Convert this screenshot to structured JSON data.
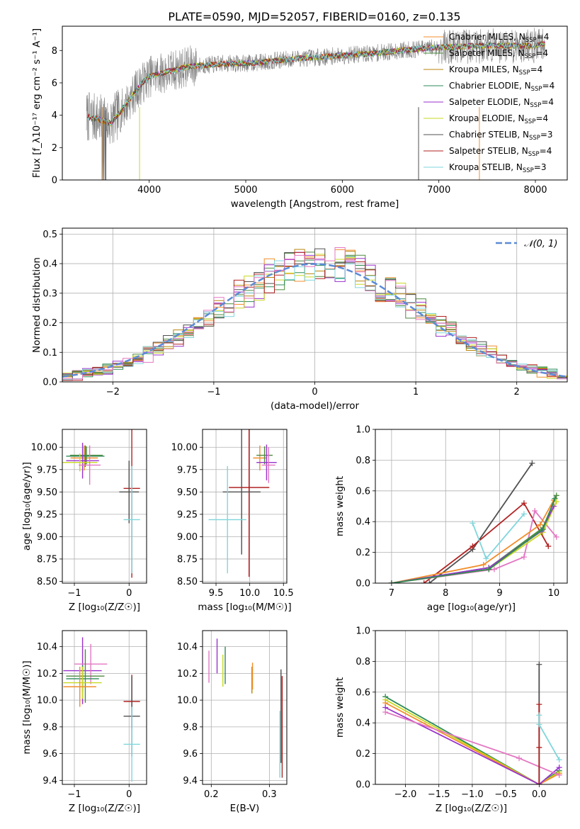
{
  "figure": {
    "title": "PLATE=0590, MJD=52057, FIBERID=0160, z=0.135"
  },
  "colors": {
    "Chabrier MILES": "#f28e2b",
    "Salpeter MILES": "#4e8a3e",
    "Kroupa MILES": "#b8860b",
    "Chabrier ELODIE": "#2e8b57",
    "Salpeter ELODIE": "#9932cc",
    "Kroupa ELODIE": "#c8d820",
    "Chabrier STELIB": "#505050",
    "Salpeter STELIB": "#b22222",
    "Kroupa STELIB": "#7fd6dc",
    "pink": "#e377c2",
    "observed": "#808080",
    "gaussian": "#5b8bd6"
  },
  "chart_data": [
    {
      "id": "spectrum",
      "type": "line",
      "xlabel": "wavelength [Angstrom, rest frame]",
      "ylabel": "Flux [f_λ10⁻¹⁷ erg cm⁻² s⁻¹ A⁻¹]",
      "xlim": [
        3100,
        8330
      ],
      "ylim": [
        0,
        9.5
      ],
      "xticks": [
        4000,
        5000,
        6000,
        7000,
        8000
      ],
      "yticks": [
        0,
        2,
        4,
        6,
        8
      ],
      "grid": false,
      "legend_position": "right",
      "legend": [
        {
          "label": "Chabrier MILES, N",
          "sub": "SSP",
          "tail": "=4",
          "color": "#f28e2b"
        },
        {
          "label": "Salpeter MILES, N",
          "sub": "SSP",
          "tail": "=4",
          "color": "#4e8a3e"
        },
        {
          "label": "Kroupa MILES, N",
          "sub": "SSP",
          "tail": "=4",
          "color": "#b8860b"
        },
        {
          "label": "Chabrier ELODIE, N",
          "sub": "SSP",
          "tail": "=4",
          "color": "#2e8b57"
        },
        {
          "label": "Salpeter ELODIE, N",
          "sub": "SSP",
          "tail": "=4",
          "color": "#9932cc"
        },
        {
          "label": "Kroupa ELODIE, N",
          "sub": "SSP",
          "tail": "=4",
          "color": "#c8d820"
        },
        {
          "label": "Chabrier STELIB, N",
          "sub": "SSP",
          "tail": "=3",
          "color": "#505050"
        },
        {
          "label": "Salpeter STELIB, N",
          "sub": "SSP",
          "tail": "=4",
          "color": "#b22222"
        },
        {
          "label": "Kroupa STELIB, N",
          "sub": "SSP",
          "tail": "=3",
          "color": "#7fd6dc"
        }
      ],
      "continuum": [
        [
          3350,
          3.9
        ],
        [
          3450,
          3.8
        ],
        [
          3600,
          3.5
        ],
        [
          3700,
          4.2
        ],
        [
          3800,
          5.0
        ],
        [
          3900,
          5.8
        ],
        [
          4000,
          6.4
        ],
        [
          4200,
          6.7
        ],
        [
          4400,
          7.0
        ],
        [
          4600,
          7.1
        ],
        [
          4800,
          7.2
        ],
        [
          5000,
          7.2
        ],
        [
          5200,
          7.3
        ],
        [
          5500,
          7.5
        ],
        [
          5800,
          7.6
        ],
        [
          6000,
          7.7
        ],
        [
          6300,
          7.8
        ],
        [
          6600,
          8.0
        ],
        [
          7000,
          8.2
        ],
        [
          7500,
          8.3
        ],
        [
          8000,
          8.3
        ],
        [
          8100,
          8.4
        ]
      ]
    },
    {
      "id": "residuals",
      "type": "histogram",
      "xlabel": "(data-model)/error",
      "ylabel": "Normed distribution",
      "xlim": [
        -2.5,
        2.5
      ],
      "ylim": [
        0,
        0.52
      ],
      "xticks": [
        -2,
        -1,
        0,
        1,
        2
      ],
      "yticks": [
        0.0,
        0.1,
        0.2,
        0.3,
        0.4,
        0.5
      ],
      "grid": true,
      "legend_position": "top-right",
      "legend": [
        {
          "label": "𝒩(0, 1)",
          "color": "#5b8bd6"
        }
      ]
    },
    {
      "id": "age-vs-Z",
      "type": "scatter",
      "xlabel": "Z [log₁₀(Z/Z☉)]",
      "ylabel": "age  [log₁₀(age/yr)]",
      "xlim": [
        -1.22,
        0.32
      ],
      "ylim": [
        8.48,
        10.2
      ],
      "xticks": [
        -1,
        0
      ],
      "yticks": [
        8.5,
        8.75,
        9.0,
        9.25,
        9.5,
        9.75,
        10.0
      ],
      "grid": true,
      "points": [
        {
          "series": "Chabrier MILES",
          "x": -0.82,
          "y": 9.88,
          "xerr": 0.25,
          "yerr": 0.14
        },
        {
          "series": "Salpeter MILES",
          "x": -0.78,
          "y": 9.91,
          "xerr": 0.3,
          "yerr": 0.1
        },
        {
          "series": "Chabrier ELODIE",
          "x": -0.8,
          "y": 9.9,
          "xerr": 0.35,
          "yerr": 0.12
        },
        {
          "series": "Salpeter ELODIE",
          "x": -0.85,
          "y": 9.85,
          "xerr": 0.3,
          "yerr": 0.2
        },
        {
          "series": "Kroupa ELODIE",
          "x": -0.9,
          "y": 9.83,
          "xerr": 0.32,
          "yerr": 0.1
        },
        {
          "series": "pink",
          "x": -0.72,
          "y": 9.8,
          "xerr": 0.2,
          "yerr": 0.22
        },
        {
          "series": "Salpeter STELIB",
          "x": 0.05,
          "y": 9.54,
          "xerr": 0.15,
          "yerr": 1.0
        },
        {
          "series": "Chabrier STELIB",
          "x": 0.0,
          "y": 9.5,
          "xerr": 0.18,
          "yerr": 0.35
        },
        {
          "series": "Kroupa STELIB",
          "x": 0.05,
          "y": 9.19,
          "xerr": 0.15,
          "yerr": 0.6
        }
      ]
    },
    {
      "id": "age-vs-mass",
      "type": "scatter",
      "xlabel": "mass [log₁₀(M/M☉)]",
      "ylabel": "",
      "xlim": [
        9.3,
        10.55
      ],
      "ylim": [
        8.48,
        10.2
      ],
      "xticks": [
        9.5,
        10.0,
        10.5
      ],
      "yticks": [
        8.5,
        8.75,
        9.0,
        9.25,
        9.5,
        9.75,
        10.0
      ],
      "grid": true,
      "points": [
        {
          "series": "Chabrier MILES",
          "x": 10.15,
          "y": 9.88,
          "xerr": 0.1,
          "yerr": 0.14
        },
        {
          "series": "Salpeter MILES",
          "x": 10.22,
          "y": 9.91,
          "xerr": 0.12,
          "yerr": 0.1
        },
        {
          "series": "Salpeter ELODIE",
          "x": 10.25,
          "y": 9.83,
          "xerr": 0.15,
          "yerr": 0.2
        },
        {
          "series": "pink",
          "x": 10.28,
          "y": 9.8,
          "xerr": 0.1,
          "yerr": 0.2
        },
        {
          "series": "Salpeter STELIB",
          "x": 9.99,
          "y": 9.55,
          "xerr": 0.3,
          "yerr": 1.0
        },
        {
          "series": "Chabrier STELIB",
          "x": 9.88,
          "y": 9.5,
          "xerr": 0.28,
          "yerr": 0.7
        },
        {
          "series": "Kroupa STELIB",
          "x": 9.67,
          "y": 9.19,
          "xerr": 0.28,
          "yerr": 0.6
        }
      ]
    },
    {
      "id": "mass-weight-vs-age",
      "type": "line",
      "xlabel": "age  [log₁₀(age/yr)]",
      "ylabel": "mass weight",
      "xlim": [
        6.7,
        10.25
      ],
      "ylim": [
        0,
        1.0
      ],
      "xticks": [
        7,
        8,
        9,
        10
      ],
      "yticks": [
        0.0,
        0.2,
        0.4,
        0.6,
        0.8,
        1.0
      ],
      "grid": true,
      "series": [
        {
          "name": "Chabrier STELIB",
          "color": "#505050",
          "points": [
            [
              7.7,
              0.0
            ],
            [
              8.5,
              0.22
            ],
            [
              9.6,
              0.78
            ]
          ]
        },
        {
          "name": "Salpeter STELIB",
          "color": "#b22222",
          "points": [
            [
              7.6,
              0.0
            ],
            [
              8.5,
              0.24
            ],
            [
              9.45,
              0.52
            ],
            [
              9.9,
              0.24
            ]
          ]
        },
        {
          "name": "Kroupa STELIB",
          "color": "#7fd6dc",
          "points": [
            [
              8.5,
              0.39
            ],
            [
              8.75,
              0.16
            ],
            [
              9.45,
              0.45
            ]
          ]
        },
        {
          "name": "pink",
          "color": "#e377c2",
          "points": [
            [
              7.0,
              0.0
            ],
            [
              8.9,
              0.09
            ],
            [
              9.45,
              0.17
            ],
            [
              9.65,
              0.47
            ],
            [
              10.05,
              0.3
            ]
          ]
        },
        {
          "name": "Chabrier MILES",
          "color": "#f28e2b",
          "points": [
            [
              7.0,
              0.0
            ],
            [
              8.7,
              0.12
            ],
            [
              9.75,
              0.38
            ],
            [
              10.0,
              0.54
            ]
          ]
        },
        {
          "name": "Salpeter MILES",
          "color": "#4e8a3e",
          "points": [
            [
              7.0,
              0.0
            ],
            [
              8.8,
              0.1
            ],
            [
              9.8,
              0.36
            ],
            [
              10.05,
              0.57
            ]
          ]
        },
        {
          "name": "Kroupa ELODIE",
          "color": "#c8d820",
          "points": [
            [
              7.0,
              0.0
            ],
            [
              8.8,
              0.09
            ],
            [
              9.8,
              0.33
            ],
            [
              10.05,
              0.53
            ]
          ]
        },
        {
          "name": "Salpeter ELODIE",
          "color": "#9932cc",
          "points": [
            [
              7.0,
              0.0
            ],
            [
              8.8,
              0.1
            ],
            [
              9.78,
              0.34
            ],
            [
              10.0,
              0.5
            ]
          ]
        },
        {
          "name": "Chabrier ELODIE",
          "color": "#2e8b57",
          "points": [
            [
              7.0,
              0.0
            ],
            [
              8.8,
              0.09
            ],
            [
              9.8,
              0.35
            ],
            [
              10.02,
              0.55
            ]
          ]
        }
      ]
    },
    {
      "id": "mass-vs-Z",
      "type": "scatter",
      "xlabel": "Z [log₁₀(Z/Z☉)]",
      "ylabel": "mass [log₁₀(M/M☉)]",
      "xlim": [
        -1.22,
        0.32
      ],
      "ylim": [
        9.37,
        10.52
      ],
      "xticks": [
        -1,
        0
      ],
      "yticks": [
        9.4,
        9.6,
        9.8,
        10.0,
        10.2,
        10.4
      ],
      "grid": true,
      "points": [
        {
          "series": "Salpeter ELODIE",
          "x": -0.85,
          "y": 10.22,
          "xerr": 0.35,
          "yerr": 0.25
        },
        {
          "series": "pink",
          "x": -0.7,
          "y": 10.27,
          "xerr": 0.3,
          "yerr": 0.15
        },
        {
          "series": "Salpeter MILES",
          "x": -0.8,
          "y": 10.18,
          "xerr": 0.35,
          "yerr": 0.2
        },
        {
          "series": "Chabrier ELODIE",
          "x": -0.85,
          "y": 10.16,
          "xerr": 0.3,
          "yerr": 0.1
        },
        {
          "series": "Kroupa ELODIE",
          "x": -0.85,
          "y": 10.13,
          "xerr": 0.35,
          "yerr": 0.12
        },
        {
          "series": "Chabrier MILES",
          "x": -0.9,
          "y": 10.1,
          "xerr": 0.3,
          "yerr": 0.15
        },
        {
          "series": "Salpeter STELIB",
          "x": 0.05,
          "y": 9.99,
          "xerr": 0.15,
          "yerr": 0.2
        },
        {
          "series": "Chabrier STELIB",
          "x": 0.05,
          "y": 9.88,
          "xerr": 0.15,
          "yerr": 0.3
        },
        {
          "series": "Kroupa STELIB",
          "x": 0.05,
          "y": 9.67,
          "xerr": 0.15,
          "yerr": 0.28
        }
      ]
    },
    {
      "id": "mass-vs-ebv",
      "type": "scatter",
      "xlabel": "E(B-V)",
      "ylabel": "",
      "xlim": [
        0.185,
        0.33
      ],
      "ylim": [
        9.37,
        10.52
      ],
      "xticks": [
        0.2,
        0.3
      ],
      "yticks": [
        9.4,
        9.6,
        9.8,
        10.0,
        10.2,
        10.4
      ],
      "grid": true,
      "points": [
        {
          "series": "pink",
          "x": 0.196,
          "y": 10.25,
          "xerr": 0,
          "yerr": 0.12
        },
        {
          "series": "Salpeter ELODIE",
          "x": 0.21,
          "y": 10.33,
          "xerr": 0,
          "yerr": 0.13
        },
        {
          "series": "Kroupa ELODIE",
          "x": 0.22,
          "y": 10.22,
          "xerr": 0,
          "yerr": 0.12
        },
        {
          "series": "Chabrier ELODIE",
          "x": 0.224,
          "y": 10.26,
          "xerr": 0,
          "yerr": 0.14
        },
        {
          "series": "Kroupa MILES",
          "x": 0.27,
          "y": 10.15,
          "xerr": 0,
          "yerr": 0.1
        },
        {
          "series": "Chabrier MILES",
          "x": 0.271,
          "y": 10.18,
          "xerr": 0,
          "yerr": 0.1
        },
        {
          "series": "Kroupa STELIB",
          "x": 0.318,
          "y": 9.67,
          "xerr": 0,
          "yerr": 0.25
        },
        {
          "series": "Chabrier STELIB",
          "x": 0.32,
          "y": 9.88,
          "xerr": 0,
          "yerr": 0.35
        },
        {
          "series": "Salpeter STELIB",
          "x": 0.322,
          "y": 9.8,
          "xerr": 0,
          "yerr": 0.38
        }
      ]
    },
    {
      "id": "mass-weight-vs-Z",
      "type": "line",
      "xlabel": "Z [log₁₀(Z/Z☉)]",
      "ylabel": "mass weight",
      "xlim": [
        -2.45,
        0.42
      ],
      "ylim": [
        0,
        1.0
      ],
      "xticks": [
        -2.0,
        -1.5,
        -1.0,
        -0.5,
        0.0
      ],
      "yticks": [
        0.0,
        0.2,
        0.4,
        0.6,
        0.8,
        1.0
      ],
      "grid": true,
      "series": [
        {
          "name": "Chabrier ELODIE",
          "color": "#2e8b57",
          "points": [
            [
              -2.3,
              0.57
            ],
            [
              0.0,
              0.0
            ],
            [
              0.3,
              0.09
            ]
          ]
        },
        {
          "name": "Kroupa ELODIE",
          "color": "#c8d820",
          "points": [
            [
              -2.3,
              0.55
            ],
            [
              0.0,
              0.0
            ],
            [
              0.3,
              0.08
            ]
          ]
        },
        {
          "name": "Chabrier MILES",
          "color": "#f28e2b",
          "points": [
            [
              -2.3,
              0.53
            ],
            [
              0.0,
              0.0
            ],
            [
              0.3,
              0.07
            ]
          ]
        },
        {
          "name": "Salpeter ELODIE",
          "color": "#9932cc",
          "points": [
            [
              -2.3,
              0.5
            ],
            [
              0.0,
              0.0
            ],
            [
              0.3,
              0.11
            ]
          ]
        },
        {
          "name": "pink",
          "color": "#e377c2",
          "points": [
            [
              -2.3,
              0.47
            ],
            [
              -0.3,
              0.17
            ],
            [
              0.3,
              0.06
            ]
          ]
        },
        {
          "name": "Chabrier STELIB",
          "color": "#505050",
          "points": [
            [
              0.0,
              0.78
            ],
            [
              0.0,
              0.0
            ]
          ]
        },
        {
          "name": "Salpeter STELIB",
          "color": "#b22222",
          "points": [
            [
              0.0,
              0.52
            ],
            [
              0.0,
              0.24
            ],
            [
              0.0,
              0.0
            ]
          ]
        },
        {
          "name": "Kroupa STELIB",
          "color": "#7fd6dc",
          "points": [
            [
              0.0,
              0.45
            ],
            [
              0.0,
              0.39
            ],
            [
              0.3,
              0.16
            ]
          ]
        }
      ]
    }
  ]
}
